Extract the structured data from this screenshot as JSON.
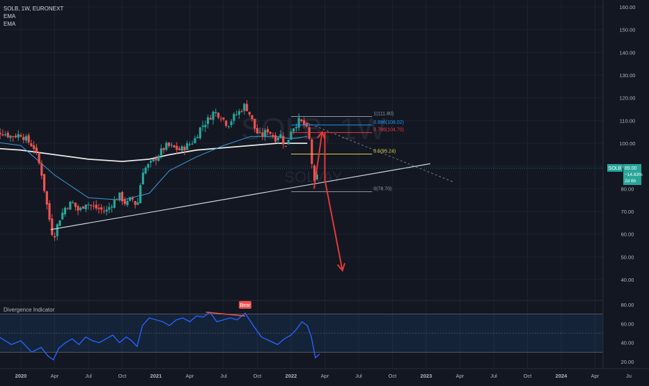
{
  "header": {
    "symbol_line": "SOLB, 1W, EURONEXT",
    "indicators": [
      "EMA",
      "EMA"
    ]
  },
  "watermark": {
    "ticker": "SOLB, 1W",
    "name": "SOLVAY"
  },
  "price_badge": {
    "symbol": "SOLB",
    "price": "89.00",
    "change": "−14.83%",
    "countdown": "2d 6h",
    "value": 89.0
  },
  "colors": {
    "background": "#131722",
    "up": "#26a69a",
    "down": "#ef5350",
    "ema_fast": "#3d9bd9",
    "ema_slow": "#e9e9e9",
    "fib_1": "#9598a1",
    "fib_0886": "#2196f3",
    "fib_0786": "#f23645",
    "fib_05": "#e6d14a",
    "fib_0": "#9598a1",
    "arrow": "#e53935",
    "rsi": "#2962ff",
    "badge": "#26a69a"
  },
  "chart_data": [
    {
      "type": "candlestick",
      "title": "SOLB, 1W, EURONEXT",
      "y_axis": {
        "ticks": [
          40,
          50,
          60,
          70,
          80,
          90,
          100,
          110,
          120,
          130,
          140,
          150,
          160
        ],
        "tick_labels": [
          "40.00",
          "50.00",
          "60.00",
          "70.00",
          "80.00",
          "90.00",
          "100.00",
          "110.00",
          "120.00",
          "130.00",
          "140.00",
          "150.00",
          "160.00"
        ],
        "position": "right"
      },
      "x_axis": {
        "ticks": [
          "2020",
          "Apr",
          "Jul",
          "Oct",
          "2021",
          "Apr",
          "Jul",
          "Oct",
          "2022",
          "Apr",
          "Jul",
          "Oct",
          "2023",
          "Apr",
          "Jul",
          "Oct",
          "2024",
          "Apr",
          "Ju"
        ],
        "tick_dates": [
          2020.0,
          2020.25,
          2020.5,
          2020.75,
          2021.0,
          2021.25,
          2021.5,
          2021.75,
          2022.0,
          2022.25,
          2022.5,
          2022.75,
          2023.0,
          2023.25,
          2023.5,
          2023.75,
          2024.0,
          2024.25,
          2024.5
        ]
      },
      "price_path": [
        [
          2019.75,
          104
        ],
        [
          2019.85,
          105
        ],
        [
          2019.93,
          103
        ],
        [
          2020.0,
          104
        ],
        [
          2020.05,
          101
        ],
        [
          2020.1,
          98
        ],
        [
          2020.15,
          88
        ],
        [
          2020.2,
          70
        ],
        [
          2020.24,
          58
        ],
        [
          2020.28,
          66
        ],
        [
          2020.33,
          72
        ],
        [
          2020.38,
          74
        ],
        [
          2020.43,
          70
        ],
        [
          2020.48,
          74
        ],
        [
          2020.53,
          72
        ],
        [
          2020.58,
          71
        ],
        [
          2020.63,
          70
        ],
        [
          2020.68,
          74
        ],
        [
          2020.73,
          77
        ],
        [
          2020.78,
          73
        ],
        [
          2020.82,
          76
        ],
        [
          2020.86,
          72
        ],
        [
          2020.9,
          88
        ],
        [
          2020.94,
          90
        ],
        [
          2020.98,
          92
        ],
        [
          2021.03,
          96
        ],
        [
          2021.08,
          99
        ],
        [
          2021.13,
          98
        ],
        [
          2021.18,
          97
        ],
        [
          2021.23,
          99
        ],
        [
          2021.28,
          101
        ],
        [
          2021.33,
          107
        ],
        [
          2021.38,
          110
        ],
        [
          2021.43,
          114
        ],
        [
          2021.48,
          112
        ],
        [
          2021.53,
          108
        ],
        [
          2021.58,
          112
        ],
        [
          2021.62,
          114
        ],
        [
          2021.66,
          117
        ],
        [
          2021.7,
          112
        ],
        [
          2021.74,
          105
        ],
        [
          2021.78,
          103
        ],
        [
          2021.83,
          106
        ],
        [
          2021.88,
          102
        ],
        [
          2021.92,
          104
        ],
        [
          2021.96,
          98
        ],
        [
          2022.0,
          106
        ],
        [
          2022.03,
          108
        ],
        [
          2022.06,
          110
        ],
        [
          2022.1,
          108
        ],
        [
          2022.13,
          104
        ],
        [
          2022.16,
          88
        ],
        [
          2022.18,
          79
        ],
        [
          2022.2,
          89
        ]
      ],
      "ema_fast": [
        [
          2019.75,
          101
        ],
        [
          2020.0,
          99
        ],
        [
          2020.25,
          86
        ],
        [
          2020.5,
          76
        ],
        [
          2020.75,
          75
        ],
        [
          2020.95,
          78
        ],
        [
          2021.1,
          88
        ],
        [
          2021.3,
          94
        ],
        [
          2021.5,
          99
        ],
        [
          2021.7,
          103
        ],
        [
          2021.9,
          103
        ],
        [
          2022.0,
          102
        ],
        [
          2022.12,
          103
        ]
      ],
      "ema_slow": [
        [
          2019.75,
          98
        ],
        [
          2020.0,
          97
        ],
        [
          2020.25,
          95
        ],
        [
          2020.5,
          93
        ],
        [
          2020.75,
          92
        ],
        [
          2020.95,
          93
        ],
        [
          2021.1,
          95
        ],
        [
          2021.3,
          97
        ],
        [
          2021.5,
          98
        ],
        [
          2021.7,
          99
        ],
        [
          2021.9,
          100
        ],
        [
          2022.0,
          100
        ],
        [
          2022.12,
          100
        ]
      ],
      "trendline": [
        [
          2020.22,
          62
        ],
        [
          2023.03,
          91
        ]
      ],
      "dashed_projection": [
        [
          2022.12,
          109
        ],
        [
          2023.2,
          83
        ]
      ],
      "fibonacci": [
        {
          "label": "1(111.80)",
          "value": 111.8
        },
        {
          "label": "0.886(108.02)",
          "value": 108.02
        },
        {
          "label": "0.786(104.70)",
          "value": 104.7
        },
        {
          "label": "0.5(95.24)",
          "value": 95.24
        },
        {
          "label": "0(78.70)",
          "value": 78.7
        }
      ],
      "fib_x_range": [
        2022.0,
        2022.6
      ],
      "projection_arrows": [
        {
          "from": [
            2022.17,
            80
          ],
          "to": [
            2022.23,
            105
          ]
        },
        {
          "from": [
            2022.25,
            105
          ],
          "to": [
            2022.25,
            84
          ]
        },
        {
          "from": [
            2022.25,
            84
          ],
          "to": [
            2022.38,
            44
          ]
        }
      ],
      "current_price": 89.0
    },
    {
      "type": "line",
      "title": "Divergence Indicator",
      "y_axis": {
        "ticks": [
          20,
          40,
          60,
          80
        ],
        "tick_labels": [
          "20.00",
          "40.00",
          "60.00",
          "80.00"
        ],
        "band": [
          30,
          70
        ]
      },
      "series": [
        {
          "values": [
            [
              2019.75,
              55
            ],
            [
              2019.85,
              45
            ],
            [
              2019.93,
              38
            ],
            [
              2020.0,
              42
            ],
            [
              2020.08,
              30
            ],
            [
              2020.15,
              35
            ],
            [
              2020.2,
              26
            ],
            [
              2020.24,
              22
            ],
            [
              2020.28,
              34
            ],
            [
              2020.33,
              40
            ],
            [
              2020.38,
              44
            ],
            [
              2020.43,
              38
            ],
            [
              2020.48,
              46
            ],
            [
              2020.53,
              42
            ],
            [
              2020.58,
              40
            ],
            [
              2020.63,
              44
            ],
            [
              2020.68,
              48
            ],
            [
              2020.73,
              40
            ],
            [
              2020.78,
              46
            ],
            [
              2020.82,
              42
            ],
            [
              2020.86,
              36
            ],
            [
              2020.9,
              58
            ],
            [
              2020.95,
              66
            ],
            [
              2021.0,
              64
            ],
            [
              2021.05,
              62
            ],
            [
              2021.1,
              58
            ],
            [
              2021.15,
              64
            ],
            [
              2021.2,
              66
            ],
            [
              2021.25,
              62
            ],
            [
              2021.3,
              68
            ],
            [
              2021.35,
              67
            ],
            [
              2021.4,
              72
            ],
            [
              2021.45,
              62
            ],
            [
              2021.5,
              64
            ],
            [
              2021.55,
              66
            ],
            [
              2021.6,
              64
            ],
            [
              2021.66,
              71
            ],
            [
              2021.72,
              58
            ],
            [
              2021.78,
              46
            ],
            [
              2021.84,
              42
            ],
            [
              2021.9,
              38
            ],
            [
              2021.95,
              44
            ],
            [
              2022.0,
              48
            ],
            [
              2022.04,
              54
            ],
            [
              2022.08,
              62
            ],
            [
              2022.12,
              58
            ],
            [
              2022.15,
              46
            ],
            [
              2022.18,
              24
            ],
            [
              2022.21,
              28
            ]
          ]
        }
      ],
      "divergence_line": [
        [
          2021.37,
          72
        ],
        [
          2021.66,
          68
        ]
      ],
      "divergence_label": "Bear",
      "divergence_label_at": [
        2021.66,
        72
      ]
    }
  ]
}
